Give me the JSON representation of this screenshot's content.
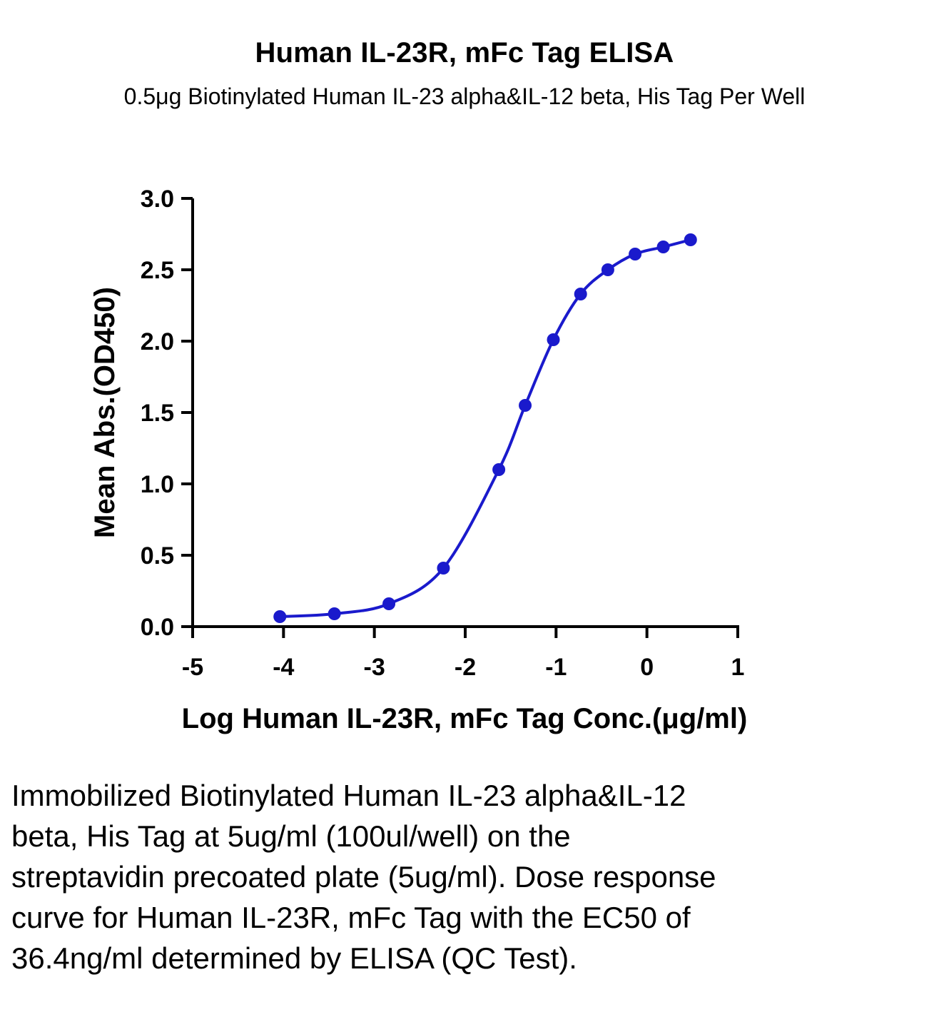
{
  "chart_data": {
    "type": "line",
    "title": "Human IL-23R, mFc Tag ELISA",
    "subtitle": "0.5μg Biotinylated Human IL-23 alpha&IL-12 beta, His Tag Per Well",
    "xlabel": "Log Human IL-23R, mFc Tag Conc.(μg/ml)",
    "ylabel": "Mean Abs.(OD450)",
    "xlim": [
      -5,
      1
    ],
    "ylim": [
      0,
      3
    ],
    "xticks": [
      -5,
      -4,
      -3,
      -2,
      -1,
      0,
      1
    ],
    "xtick_labels": [
      "-5",
      "-4",
      "-3",
      "-2",
      "-1",
      "0",
      "1"
    ],
    "yticks": [
      0,
      0.5,
      1,
      1.5,
      2,
      2.5,
      3
    ],
    "ytick_labels": [
      "0.0",
      "0.5",
      "1.0",
      "1.5",
      "2.0",
      "2.5",
      "3.0"
    ],
    "grid": false,
    "series": [
      {
        "x": [
          -4.04,
          -3.44,
          -2.84,
          -2.24,
          -1.63,
          -1.34,
          -1.03,
          -0.73,
          -0.43,
          -0.13,
          0.18,
          0.48
        ],
        "y": [
          0.07,
          0.09,
          0.16,
          0.41,
          1.1,
          1.55,
          2.01,
          2.33,
          2.5,
          2.61,
          2.66,
          2.71
        ],
        "color": "#1a1acc"
      }
    ]
  },
  "caption": "Immobilized Biotinylated Human IL-23 alpha&IL-12 beta, His Tag at 5ug/ml (100ul/well) on the streptavidin precoated plate (5ug/ml). Dose response curve for Human IL-23R, mFc Tag with the EC50 of 36.4ng/ml determined by ELISA (QC Test)."
}
